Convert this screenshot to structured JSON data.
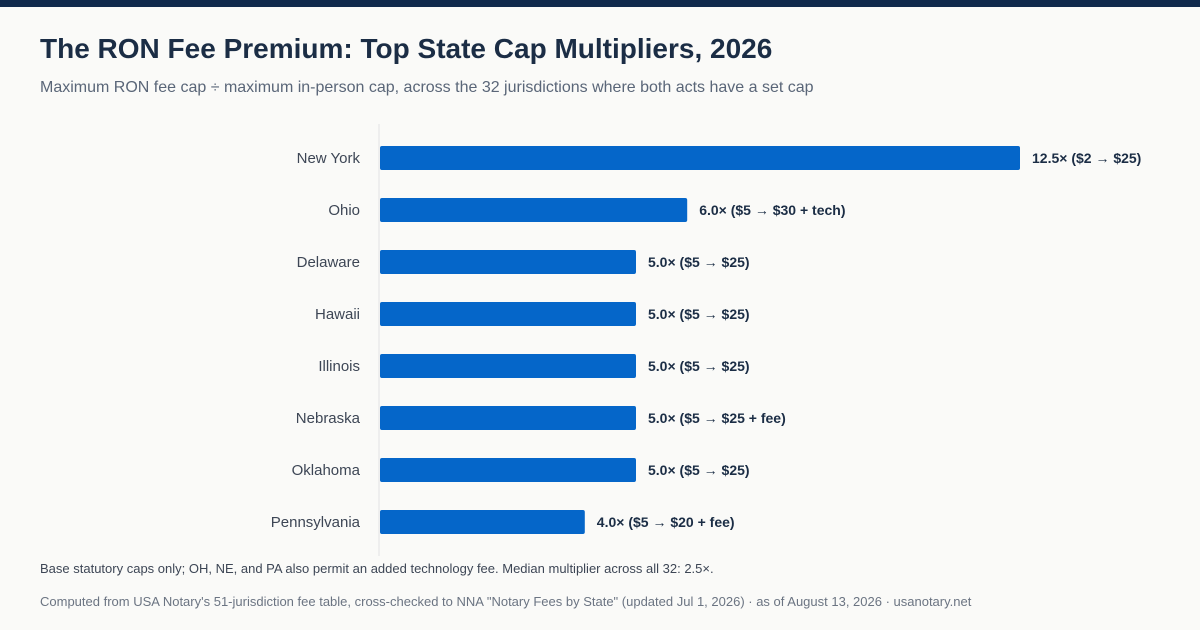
{
  "header": {
    "title": "The RON Fee Premium: Top State Cap Multipliers, 2026",
    "subtitle": "Maximum RON fee cap ÷ maximum in-person cap, across the 32 jurisdictions where both acts have a set cap"
  },
  "footer": {
    "note": "Base statutory caps only; OH, NE, and PA also permit an added technology fee. Median multiplier across all 32: 2.5×.",
    "source": "Computed from USA Notary's 51-jurisdiction fee table, cross-checked to NNA \"Notary Fees by State\" (updated Jul 1, 2026) · as of August 13, 2026 · usanotary.net"
  },
  "colors": {
    "bar": "#0566c9",
    "top_bar": "#102a4c",
    "axis": "#e3e3e3",
    "value_label": "#1b2d45",
    "category_label": "#3d4655"
  },
  "chart_data": {
    "type": "bar",
    "orientation": "horizontal",
    "categories": [
      "New York",
      "Ohio",
      "Delaware",
      "Hawaii",
      "Illinois",
      "Nebraska",
      "Oklahoma",
      "Pennsylvania"
    ],
    "values": [
      12.5,
      6.0,
      5.0,
      5.0,
      5.0,
      5.0,
      5.0,
      4.0
    ],
    "data_labels": [
      "12.5× ($2 → $25)",
      "6.0× ($5 → $30 + tech)",
      "5.0× ($5 → $25)",
      "5.0× ($5 → $25)",
      "5.0× ($5 → $25)",
      "5.0× ($5 → $25 + fee)",
      "5.0× ($5 → $25)",
      "4.0× ($5 → $20 + fee)"
    ],
    "xlim": [
      0,
      12.5
    ],
    "grid": false,
    "legend": "none"
  }
}
